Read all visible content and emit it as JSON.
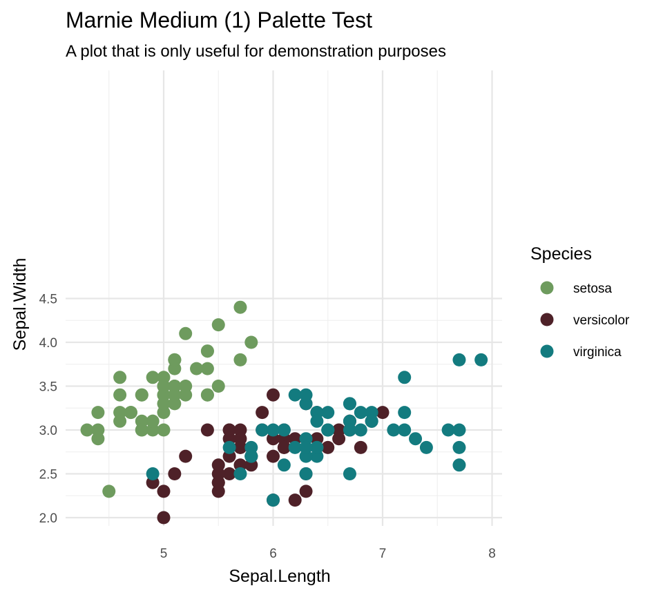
{
  "chart_data": {
    "type": "scatter",
    "title": "Marnie Medium (1) Palette Test",
    "subtitle": "A plot that is only useful for demonstration purposes",
    "xlabel": "Sepal.Length",
    "ylabel": "Sepal.Width",
    "xlim": [
      4.2,
      8.1
    ],
    "ylim": [
      1.95,
      4.5
    ],
    "x_ticks": [
      5,
      6,
      7,
      8
    ],
    "y_ticks": [
      2.0,
      2.5,
      3.0,
      3.5,
      4.0,
      4.5
    ],
    "x_tick_labels": [
      "5",
      "6",
      "7",
      "8"
    ],
    "y_tick_labels": [
      "2.0",
      "2.5",
      "3.0",
      "3.5",
      "4.0",
      "4.5"
    ],
    "grid": true,
    "legend": {
      "title": "Species",
      "placement": "right"
    },
    "series": [
      {
        "name": "setosa",
        "color": "#6e9b5e",
        "points": [
          [
            5.1,
            3.5
          ],
          [
            4.9,
            3.0
          ],
          [
            4.7,
            3.2
          ],
          [
            4.6,
            3.1
          ],
          [
            5.0,
            3.6
          ],
          [
            5.4,
            3.9
          ],
          [
            4.6,
            3.4
          ],
          [
            5.0,
            3.4
          ],
          [
            4.4,
            2.9
          ],
          [
            4.9,
            3.1
          ],
          [
            5.4,
            3.7
          ],
          [
            4.8,
            3.4
          ],
          [
            4.8,
            3.0
          ],
          [
            4.3,
            3.0
          ],
          [
            5.8,
            4.0
          ],
          [
            5.7,
            4.4
          ],
          [
            5.4,
            3.9
          ],
          [
            5.1,
            3.5
          ],
          [
            5.7,
            3.8
          ],
          [
            5.1,
            3.8
          ],
          [
            5.4,
            3.4
          ],
          [
            5.1,
            3.7
          ],
          [
            4.6,
            3.6
          ],
          [
            5.1,
            3.3
          ],
          [
            4.8,
            3.4
          ],
          [
            5.0,
            3.0
          ],
          [
            5.0,
            3.4
          ],
          [
            5.2,
            3.5
          ],
          [
            5.2,
            3.4
          ],
          [
            4.7,
            3.2
          ],
          [
            4.8,
            3.1
          ],
          [
            5.4,
            3.4
          ],
          [
            5.2,
            4.1
          ],
          [
            5.5,
            4.2
          ],
          [
            4.9,
            3.1
          ],
          [
            5.0,
            3.2
          ],
          [
            5.5,
            3.5
          ],
          [
            4.9,
            3.6
          ],
          [
            4.4,
            3.0
          ],
          [
            5.1,
            3.4
          ],
          [
            5.0,
            3.5
          ],
          [
            4.5,
            2.3
          ],
          [
            4.4,
            3.2
          ],
          [
            5.0,
            3.5
          ],
          [
            5.1,
            3.8
          ],
          [
            4.8,
            3.0
          ],
          [
            5.1,
            3.8
          ],
          [
            4.6,
            3.2
          ],
          [
            5.3,
            3.7
          ],
          [
            5.0,
            3.3
          ]
        ]
      },
      {
        "name": "versicolor",
        "color": "#4e2128",
        "points": [
          [
            7.0,
            3.2
          ],
          [
            6.4,
            3.2
          ],
          [
            6.9,
            3.1
          ],
          [
            5.5,
            2.3
          ],
          [
            6.5,
            2.8
          ],
          [
            5.7,
            2.8
          ],
          [
            6.3,
            3.3
          ],
          [
            4.9,
            2.4
          ],
          [
            6.6,
            2.9
          ],
          [
            5.2,
            2.7
          ],
          [
            5.0,
            2.0
          ],
          [
            5.9,
            3.0
          ],
          [
            6.0,
            2.2
          ],
          [
            6.1,
            2.9
          ],
          [
            5.6,
            2.9
          ],
          [
            6.7,
            3.1
          ],
          [
            5.6,
            3.0
          ],
          [
            5.8,
            2.7
          ],
          [
            6.2,
            2.2
          ],
          [
            5.6,
            2.5
          ],
          [
            5.9,
            3.2
          ],
          [
            6.1,
            2.8
          ],
          [
            6.3,
            2.5
          ],
          [
            6.1,
            2.8
          ],
          [
            6.4,
            2.9
          ],
          [
            6.6,
            3.0
          ],
          [
            6.8,
            2.8
          ],
          [
            6.7,
            3.0
          ],
          [
            6.0,
            2.9
          ],
          [
            5.7,
            2.6
          ],
          [
            5.5,
            2.4
          ],
          [
            5.5,
            2.4
          ],
          [
            5.8,
            2.7
          ],
          [
            6.0,
            2.7
          ],
          [
            5.4,
            3.0
          ],
          [
            6.0,
            3.4
          ],
          [
            6.7,
            3.1
          ],
          [
            6.3,
            2.3
          ],
          [
            5.6,
            3.0
          ],
          [
            5.5,
            2.5
          ],
          [
            5.5,
            2.6
          ],
          [
            6.1,
            3.0
          ],
          [
            5.8,
            2.6
          ],
          [
            5.0,
            2.3
          ],
          [
            5.6,
            2.7
          ],
          [
            5.7,
            3.0
          ],
          [
            5.7,
            2.9
          ],
          [
            6.2,
            2.9
          ],
          [
            5.1,
            2.5
          ],
          [
            5.7,
            2.8
          ]
        ]
      },
      {
        "name": "virginica",
        "color": "#137b7f",
        "points": [
          [
            6.3,
            3.3
          ],
          [
            5.8,
            2.7
          ],
          [
            7.1,
            3.0
          ],
          [
            6.3,
            2.9
          ],
          [
            6.5,
            3.0
          ],
          [
            7.6,
            3.0
          ],
          [
            4.9,
            2.5
          ],
          [
            7.3,
            2.9
          ],
          [
            6.7,
            2.5
          ],
          [
            7.2,
            3.6
          ],
          [
            6.5,
            3.2
          ],
          [
            6.4,
            2.7
          ],
          [
            6.8,
            3.0
          ],
          [
            5.7,
            2.5
          ],
          [
            5.8,
            2.8
          ],
          [
            6.4,
            3.2
          ],
          [
            6.5,
            3.0
          ],
          [
            7.7,
            3.8
          ],
          [
            7.7,
            2.6
          ],
          [
            6.0,
            2.2
          ],
          [
            6.9,
            3.2
          ],
          [
            5.6,
            2.8
          ],
          [
            7.7,
            2.8
          ],
          [
            6.3,
            2.7
          ],
          [
            6.7,
            3.3
          ],
          [
            7.2,
            3.2
          ],
          [
            6.2,
            2.8
          ],
          [
            6.1,
            3.0
          ],
          [
            6.4,
            2.8
          ],
          [
            7.2,
            3.0
          ],
          [
            7.4,
            2.8
          ],
          [
            7.9,
            3.8
          ],
          [
            6.4,
            2.8
          ],
          [
            6.3,
            2.8
          ],
          [
            6.1,
            2.6
          ],
          [
            7.7,
            3.0
          ],
          [
            6.3,
            3.4
          ],
          [
            6.4,
            3.1
          ],
          [
            6.0,
            3.0
          ],
          [
            6.9,
            3.1
          ],
          [
            6.7,
            3.1
          ],
          [
            6.9,
            3.1
          ],
          [
            5.8,
            2.7
          ],
          [
            6.8,
            3.2
          ],
          [
            6.7,
            3.3
          ],
          [
            6.7,
            3.0
          ],
          [
            6.3,
            2.5
          ],
          [
            6.5,
            3.0
          ],
          [
            6.2,
            3.4
          ],
          [
            5.9,
            3.0
          ]
        ]
      }
    ]
  }
}
